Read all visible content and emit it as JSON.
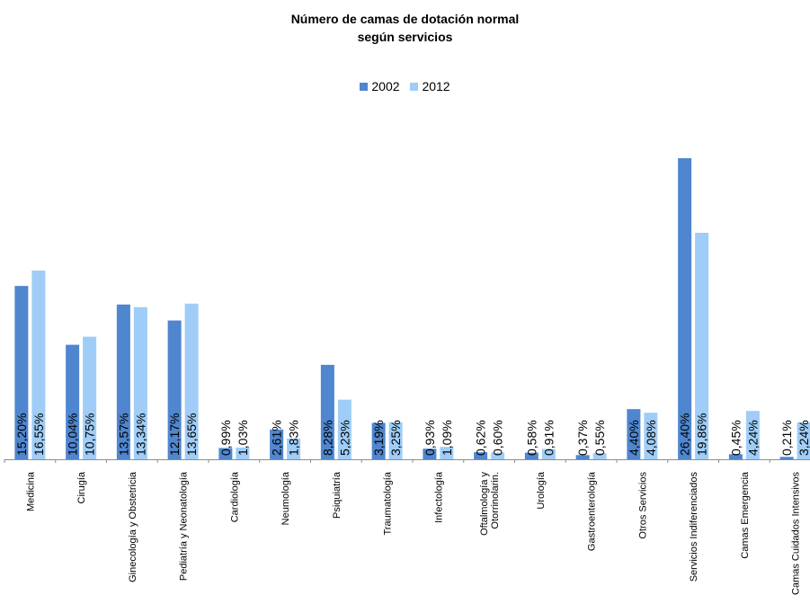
{
  "chart_data": {
    "type": "bar",
    "title_line1": "Número de camas de dotación normal",
    "title_line2": "según servicios",
    "xlabel": "",
    "ylabel": "",
    "categories": [
      "Medicina",
      "Cirugía",
      "Ginecología y Obstetricia",
      "Pediatría y Neonatología",
      "Cardiología",
      "Neumología",
      "Psiquiatría",
      "Traumatología",
      "Infectología",
      "Oftalmología y Otorrinolarin.",
      "Urología",
      "Gastroenterología",
      "Otros Servicios",
      "Servicios Indiferenciados",
      "Camas Emergencia",
      "Camas Cuidados Intensivos"
    ],
    "series": [
      {
        "name": "2002",
        "color": "#4f86cf",
        "values": [
          15.2,
          10.04,
          13.57,
          12.17,
          0.99,
          2.61,
          8.28,
          3.19,
          0.93,
          0.62,
          0.58,
          0.37,
          4.4,
          26.4,
          0.45,
          0.21
        ],
        "labels": [
          "15,20%",
          "10,04%",
          "13,57%",
          "12,17%",
          "0,99%",
          "2,61%",
          "8,28%",
          "3,19%",
          "0,93%",
          "0,62%",
          "0,58%",
          "0,37%",
          "4,40%",
          "26,40%",
          "0,45%",
          "0,21%"
        ]
      },
      {
        "name": "2012",
        "color": "#9fcdf7",
        "values": [
          16.55,
          10.75,
          13.34,
          13.65,
          1.03,
          1.83,
          5.23,
          3.25,
          1.09,
          0.6,
          0.91,
          0.55,
          4.08,
          19.86,
          4.24,
          3.24
        ],
        "labels": [
          "16,55%",
          "10,75%",
          "13,34%",
          "13,65%",
          "1,03%",
          "1,83%",
          "5,23%",
          "3,25%",
          "1,09%",
          "0,60%",
          "0,91%",
          "0,55%",
          "4,08%",
          "19,86%",
          "4,24%",
          "3,24%"
        ]
      }
    ],
    "legend_position": "top-center",
    "grid": false
  }
}
